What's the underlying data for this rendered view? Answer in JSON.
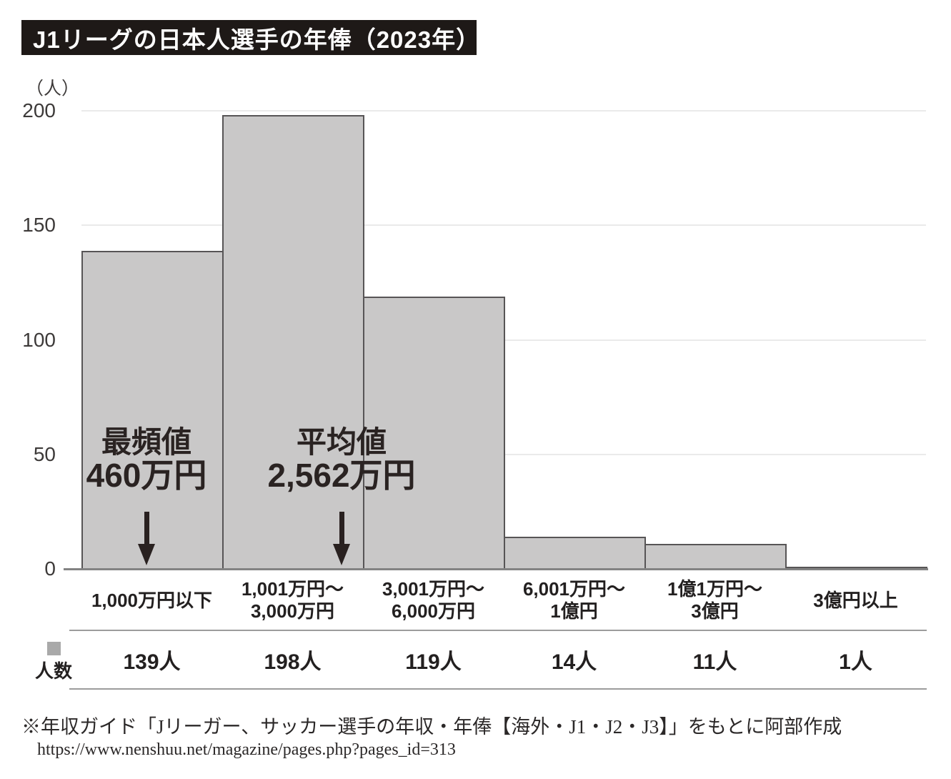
{
  "title": "J1リーグの日本人選手の年俸（2023年）",
  "y_axis": {
    "unit_label": "（人）"
  },
  "chart_data": {
    "type": "bar",
    "title": "J1リーグの日本人選手の年俸（2023年）",
    "ylabel": "（人）",
    "ylim": [
      0,
      200
    ],
    "yticks": [
      0,
      50,
      100,
      150,
      200
    ],
    "grid": true,
    "categories": [
      [
        "1,000万円以下"
      ],
      [
        "1,001万円～",
        "3,000万円"
      ],
      [
        "3,001万円～",
        "6,000万円"
      ],
      [
        "6,001万円～",
        "1億円"
      ],
      [
        "1億1万円～",
        "3億円"
      ],
      [
        "3億円以上"
      ]
    ],
    "values": [
      139,
      198,
      119,
      14,
      11,
      1
    ],
    "value_labels": [
      "139人",
      "198人",
      "119人",
      "14人",
      "11人",
      "1人"
    ],
    "series_name": "人数",
    "bar_color": "#c9c8c8",
    "bar_border_color": "#575556",
    "annotations": [
      {
        "label": "最頻値",
        "value": "460万円"
      },
      {
        "label": "平均値",
        "value": "2,562万円"
      }
    ]
  },
  "legend": {
    "label": "人数",
    "swatch_color": "#a9a9a9"
  },
  "footer": {
    "source": "※年収ガイド「Jリーガー、サッカー選手の年収・年俸【海外・J1・J2・J3】」をもとに阿部作成",
    "url": "https://www.nenshuu.net/magazine/pages.php?pages_id=313"
  }
}
